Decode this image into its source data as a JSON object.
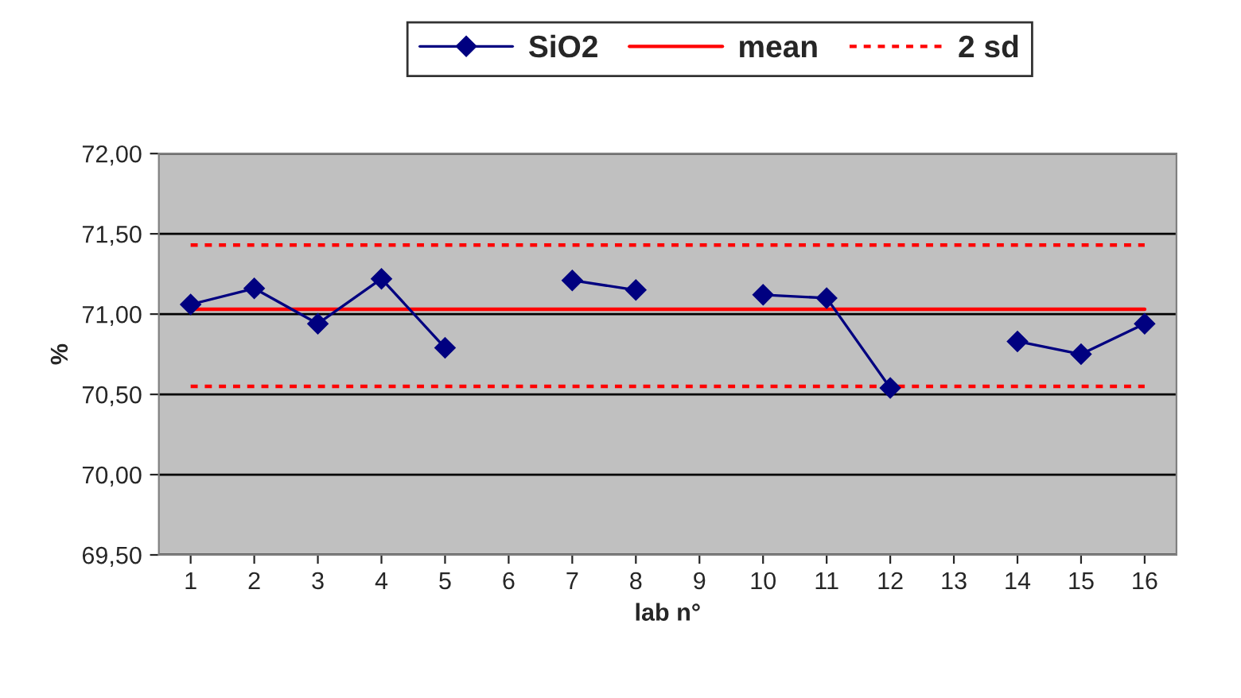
{
  "chart_data": {
    "type": "line",
    "xlabel": "lab n°",
    "ylabel": "%",
    "categories": [
      "1",
      "2",
      "3",
      "4",
      "5",
      "6",
      "7",
      "8",
      "9",
      "10",
      "11",
      "12",
      "13",
      "14",
      "15",
      "16"
    ],
    "series": [
      {
        "name": "SiO2",
        "color": "#000080",
        "marker": "diamond",
        "line_style": "solid",
        "values": [
          71.06,
          71.16,
          70.94,
          71.22,
          70.79,
          null,
          71.21,
          71.15,
          null,
          71.12,
          71.1,
          70.54,
          null,
          70.83,
          70.75,
          70.94
        ]
      },
      {
        "name": "mean",
        "color": "#ff0000",
        "marker": "none",
        "line_style": "solid",
        "values": [
          71.03,
          71.03,
          71.03,
          71.03,
          71.03,
          71.03,
          71.03,
          71.03,
          71.03,
          71.03,
          71.03,
          71.03,
          71.03,
          71.03,
          71.03,
          71.03
        ]
      },
      {
        "name": "2 sd",
        "color": "#ff0000",
        "marker": "none",
        "line_style": "dotted",
        "values": [
          71.43,
          71.43,
          71.43,
          71.43,
          71.43,
          71.43,
          71.43,
          71.43,
          71.43,
          71.43,
          71.43,
          71.43,
          71.43,
          71.43,
          71.43,
          71.43
        ]
      },
      {
        "color": "#ff0000",
        "marker": "none",
        "line_style": "dotted",
        "values": [
          70.55,
          70.55,
          70.55,
          70.55,
          70.55,
          70.55,
          70.55,
          70.55,
          70.55,
          70.55,
          70.55,
          70.55,
          70.55,
          70.55,
          70.55,
          70.55
        ]
      }
    ],
    "ylim": [
      69.5,
      72.0
    ],
    "yticks": [
      {
        "value": 69.5,
        "label": "69,50"
      },
      {
        "value": 70.0,
        "label": "70,00"
      },
      {
        "value": 70.5,
        "label": "70,50"
      },
      {
        "value": 71.0,
        "label": "71,00"
      },
      {
        "value": 71.5,
        "label": "71,50"
      },
      {
        "value": 72.0,
        "label": "72,00"
      }
    ],
    "grid": "y",
    "legend": "top"
  }
}
